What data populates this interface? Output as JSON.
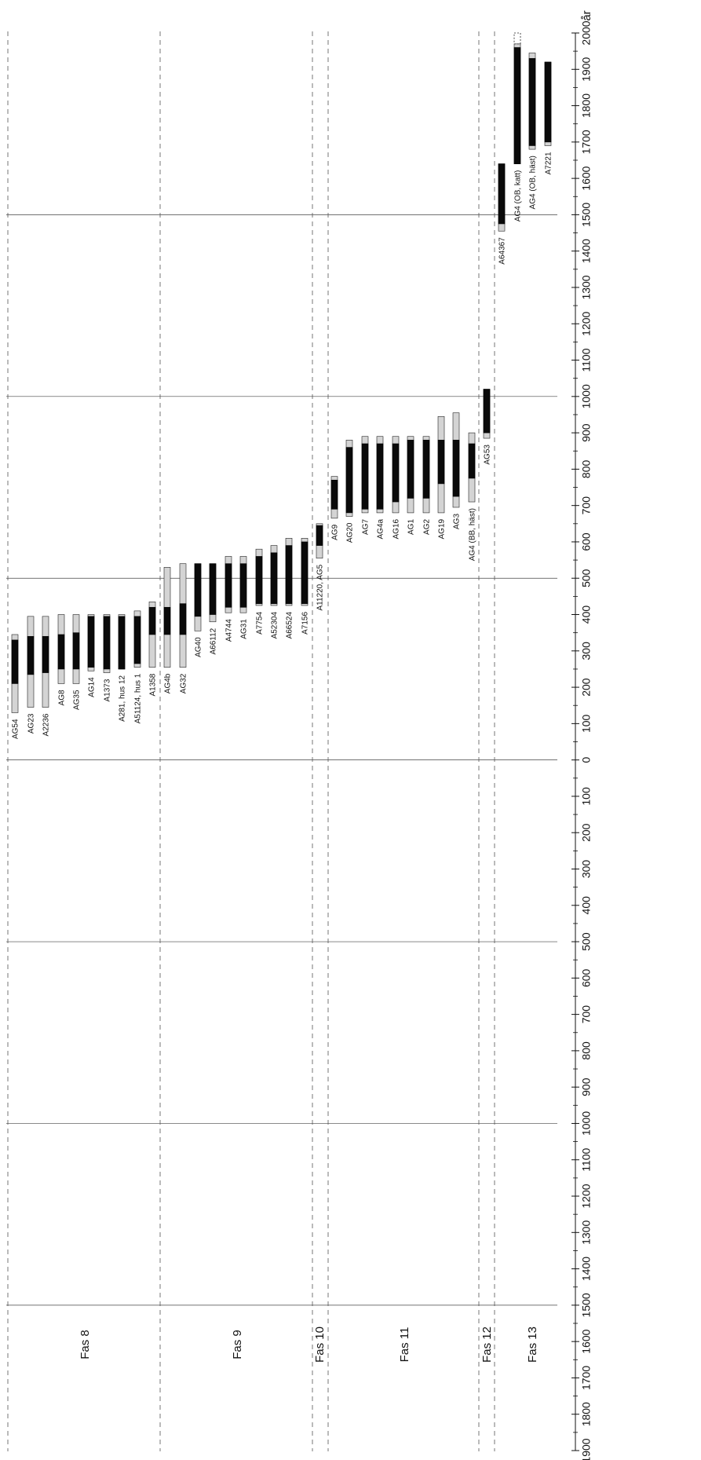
{
  "chart_data": {
    "type": "range-bar",
    "orientation": "rotated-90-ccw",
    "axis": {
      "unit_label": "år",
      "range": [
        -1900,
        2000
      ],
      "ticks": [
        {
          "value": -1900,
          "label": "1900"
        },
        {
          "value": -1800,
          "label": "1800"
        },
        {
          "value": -1700,
          "label": "1700"
        },
        {
          "value": -1600,
          "label": "1600"
        },
        {
          "value": -1500,
          "label": "1500"
        },
        {
          "value": -1400,
          "label": "1400"
        },
        {
          "value": -1300,
          "label": "1300"
        },
        {
          "value": -1200,
          "label": "1200"
        },
        {
          "value": -1100,
          "label": "1100"
        },
        {
          "value": -1000,
          "label": "1000"
        },
        {
          "value": -900,
          "label": "900"
        },
        {
          "value": -800,
          "label": "800"
        },
        {
          "value": -700,
          "label": "700"
        },
        {
          "value": -600,
          "label": "600"
        },
        {
          "value": -500,
          "label": "500"
        },
        {
          "value": -400,
          "label": "400"
        },
        {
          "value": -300,
          "label": "300"
        },
        {
          "value": -200,
          "label": "200"
        },
        {
          "value": -100,
          "label": "100"
        },
        {
          "value": 0,
          "label": "0"
        },
        {
          "value": 100,
          "label": "100"
        },
        {
          "value": 200,
          "label": "200"
        },
        {
          "value": 300,
          "label": "300"
        },
        {
          "value": 400,
          "label": "400"
        },
        {
          "value": 500,
          "label": "500"
        },
        {
          "value": 600,
          "label": "600"
        },
        {
          "value": 700,
          "label": "700"
        },
        {
          "value": 800,
          "label": "800"
        },
        {
          "value": 900,
          "label": "900"
        },
        {
          "value": 1000,
          "label": "1000"
        },
        {
          "value": 1100,
          "label": "1100"
        },
        {
          "value": 1200,
          "label": "1200"
        },
        {
          "value": 1300,
          "label": "1300"
        },
        {
          "value": 1400,
          "label": "1400"
        },
        {
          "value": 1500,
          "label": "1500"
        },
        {
          "value": 1600,
          "label": "1600"
        },
        {
          "value": 1700,
          "label": "1700"
        },
        {
          "value": 1800,
          "label": "1800"
        },
        {
          "value": 1900,
          "label": "1900"
        },
        {
          "value": 2000,
          "label": "2000"
        }
      ],
      "reference_lines": [
        -1500,
        -1000,
        -500,
        0,
        500,
        1000,
        1500
      ]
    },
    "legend_note": "",
    "phases": [
      {
        "label": "Fas 8"
      },
      {
        "label": "Fas 9"
      },
      {
        "label": "Fas 10"
      },
      {
        "label": "Fas 11"
      },
      {
        "label": "Fas 12"
      },
      {
        "label": "Fas 13"
      }
    ],
    "items": [
      {
        "label": "AG54",
        "phase": "Fas 8",
        "outer": [
          130,
          345
        ],
        "inner": [
          210,
          330
        ]
      },
      {
        "label": "AG23",
        "phase": "Fas 8",
        "outer": [
          145,
          395
        ],
        "inner": [
          235,
          340
        ]
      },
      {
        "label": "A2236",
        "phase": "Fas 8",
        "outer": [
          145,
          395
        ],
        "inner": [
          240,
          340
        ]
      },
      {
        "label": "AG8",
        "phase": "Fas 8",
        "outer": [
          210,
          400
        ],
        "inner": [
          250,
          345
        ]
      },
      {
        "label": "AG35",
        "phase": "Fas 8",
        "outer": [
          210,
          400
        ],
        "inner": [
          250,
          350
        ]
      },
      {
        "label": "AG14",
        "phase": "Fas 8",
        "outer": [
          245,
          400
        ],
        "inner": [
          255,
          395
        ]
      },
      {
        "label": "A1373",
        "phase": "Fas 8",
        "outer": [
          240,
          400
        ],
        "inner": [
          250,
          395
        ]
      },
      {
        "label": "A281, hus 12",
        "phase": "Fas 8",
        "outer": [
          250,
          400
        ],
        "inner": [
          250,
          395
        ]
      },
      {
        "label": "A51124, hus 1",
        "phase": "Fas 8",
        "outer": [
          255,
          410
        ],
        "inner": [
          265,
          395
        ]
      },
      {
        "label": "A1358",
        "phase": "Fas 8",
        "outer": [
          255,
          435
        ],
        "inner": [
          345,
          420
        ]
      },
      {
        "label": "AG4b",
        "phase": "Fas 9",
        "outer": [
          255,
          530
        ],
        "inner": [
          345,
          420
        ]
      },
      {
        "label": "AG32",
        "phase": "Fas 9",
        "outer": [
          255,
          540
        ],
        "inner": [
          345,
          430
        ]
      },
      {
        "label": "AG40",
        "phase": "Fas 9",
        "outer": [
          355,
          540
        ],
        "inner": [
          395,
          540
        ]
      },
      {
        "label": "A66112",
        "phase": "Fas 9",
        "outer": [
          380,
          540
        ],
        "inner": [
          400,
          540
        ]
      },
      {
        "label": "A4744",
        "phase": "Fas 9",
        "outer": [
          405,
          560
        ],
        "inner": [
          420,
          540
        ]
      },
      {
        "label": "AG31",
        "phase": "Fas 9",
        "outer": [
          405,
          560
        ],
        "inner": [
          420,
          540
        ]
      },
      {
        "label": "A7754",
        "phase": "Fas 9",
        "outer": [
          425,
          580
        ],
        "inner": [
          430,
          560
        ]
      },
      {
        "label": "A52304",
        "phase": "Fas 9",
        "outer": [
          425,
          590
        ],
        "inner": [
          430,
          570
        ]
      },
      {
        "label": "A66524",
        "phase": "Fas 9",
        "outer": [
          425,
          610
        ],
        "inner": [
          430,
          590
        ]
      },
      {
        "label": "A7156",
        "phase": "Fas 9",
        "outer": [
          425,
          610
        ],
        "inner": [
          430,
          600
        ]
      },
      {
        "label": "A11220, AG5",
        "phase": "Fas 10",
        "outer": [
          555,
          650
        ],
        "inner": [
          590,
          645
        ]
      },
      {
        "label": "AG9",
        "phase": "Fas 11",
        "outer": [
          665,
          780
        ],
        "inner": [
          690,
          770
        ]
      },
      {
        "label": "AG20",
        "phase": "Fas 11",
        "outer": [
          670,
          880
        ],
        "inner": [
          680,
          860
        ]
      },
      {
        "label": "AG7",
        "phase": "Fas 11",
        "outer": [
          680,
          890
        ],
        "inner": [
          690,
          870
        ]
      },
      {
        "label": "AG4a",
        "phase": "Fas 11",
        "outer": [
          680,
          890
        ],
        "inner": [
          690,
          870
        ]
      },
      {
        "label": "AG16",
        "phase": "Fas 11",
        "outer": [
          680,
          890
        ],
        "inner": [
          710,
          870
        ]
      },
      {
        "label": "AG1",
        "phase": "Fas 11",
        "outer": [
          680,
          890
        ],
        "inner": [
          720,
          880
        ]
      },
      {
        "label": "AG2",
        "phase": "Fas 11",
        "outer": [
          680,
          890
        ],
        "inner": [
          720,
          880
        ]
      },
      {
        "label": "AG19",
        "phase": "Fas 11",
        "outer": [
          680,
          945
        ],
        "inner": [
          760,
          880
        ]
      },
      {
        "label": "AG3",
        "phase": "Fas 11",
        "outer": [
          695,
          955
        ],
        "inner": [
          725,
          880
        ]
      },
      {
        "label": "AG4 (BB, häst)",
        "phase": "Fas 11",
        "outer": [
          710,
          900
        ],
        "inner": [
          775,
          870
        ]
      },
      {
        "label": "AG53",
        "phase": "Fas 12",
        "outer": [
          885,
          1020
        ],
        "inner": [
          900,
          1020
        ]
      },
      {
        "label": "A64367",
        "phase": "Fas 13",
        "outer": [
          1455,
          1640
        ],
        "inner": [
          1475,
          1640
        ]
      },
      {
        "label": "AG4 (OB, katt)",
        "phase": "Fas 13",
        "outer": [
          1640,
          1970
        ],
        "inner": [
          1640,
          1960
        ],
        "dashed_end": true
      },
      {
        "label": "AG4 (OB, häst)",
        "phase": "Fas 13",
        "outer": [
          1680,
          1945
        ],
        "inner": [
          1690,
          1930
        ]
      },
      {
        "label": "A7221",
        "phase": "Fas 13",
        "outer": [
          1690,
          1920
        ],
        "inner": [
          1700,
          1920
        ]
      }
    ]
  }
}
